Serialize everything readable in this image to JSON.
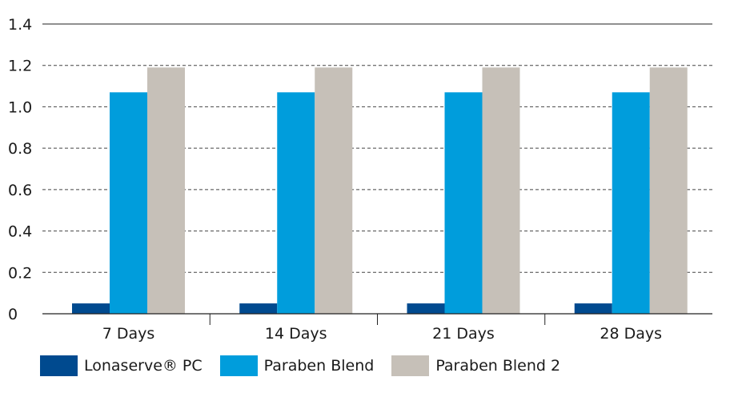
{
  "chart_data": {
    "type": "bar",
    "title": "",
    "xlabel": "",
    "ylabel": "",
    "categories": [
      "7 Days",
      "14 Days",
      "21 Days",
      "28 Days"
    ],
    "ylim": [
      0,
      1.4
    ],
    "yticks": [
      0,
      0.2,
      0.4,
      0.6,
      0.8,
      1.0,
      1.2,
      1.4
    ],
    "ytick_labels": [
      "0",
      "0.2",
      "0.4",
      "0.6",
      "0.8",
      "1.0",
      "1.2",
      "1.4"
    ],
    "grid": "horizontal dashed",
    "legend_position": "bottom",
    "series": [
      {
        "name": "Lonaserve® PC",
        "color": "#004a8f",
        "values": [
          0.05,
          0.05,
          0.05,
          0.05
        ]
      },
      {
        "name": "Paraben Blend",
        "color": "#009ddc",
        "values": [
          1.07,
          1.07,
          1.07,
          1.07
        ]
      },
      {
        "name": "Paraben Blend 2",
        "color": "#c6c0b8",
        "values": [
          1.19,
          1.19,
          1.19,
          1.19
        ]
      }
    ]
  }
}
